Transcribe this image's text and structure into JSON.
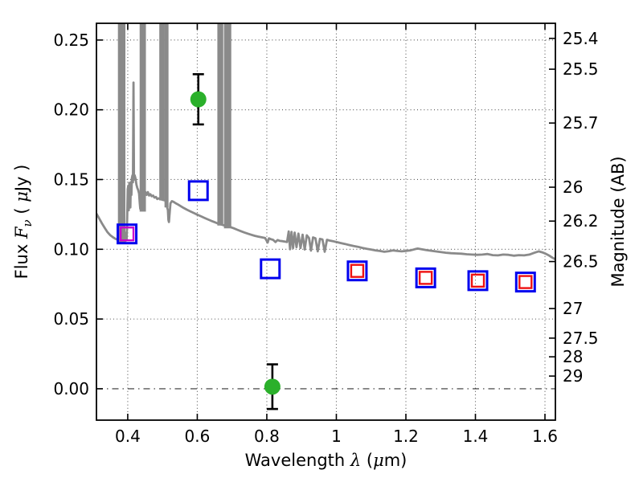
{
  "figure": {
    "background": "#ffffff"
  },
  "chart_data": {
    "type": "line+scatter",
    "title": "",
    "xlabel_parts": [
      {
        "t": "Wavelength  "
      },
      {
        "t": "λ",
        "italic": true,
        "serif": true
      },
      {
        "t": " ("
      },
      {
        "t": "μ",
        "italic": true,
        "serif": true
      },
      {
        "t": "m)"
      }
    ],
    "ylabel_left_parts": [
      {
        "t": "Flux  "
      },
      {
        "t": "F",
        "italic": true,
        "serif": true
      },
      {
        "t": "ν",
        "sub": true,
        "italic": true,
        "serif": true
      },
      {
        "t": "  ( "
      },
      {
        "t": "μ",
        "italic": true,
        "serif": true
      },
      {
        "t": "Jy )"
      }
    ],
    "ylabel_right": "Magnitude (AB)",
    "axes": {
      "xlim": [
        0.31,
        1.63
      ],
      "ylim": [
        -0.0225,
        0.262
      ],
      "grid_style": "dotted",
      "zero_line_style": "dash-dot",
      "x_ticks": [
        {
          "v": 0.4,
          "label": "0.4"
        },
        {
          "v": 0.6,
          "label": "0.6"
        },
        {
          "v": 0.8,
          "label": "0.8"
        },
        {
          "v": 1.0,
          "label": "1"
        },
        {
          "v": 1.2,
          "label": "1.2"
        },
        {
          "v": 1.4,
          "label": "1.4"
        },
        {
          "v": 1.6,
          "label": "1.6"
        }
      ],
      "y_ticks_left": [
        {
          "v": 0.0,
          "label": "0.00"
        },
        {
          "v": 0.05,
          "label": "0.05"
        },
        {
          "v": 0.1,
          "label": "0.10"
        },
        {
          "v": 0.15,
          "label": "0.15"
        },
        {
          "v": 0.2,
          "label": "0.20"
        },
        {
          "v": 0.25,
          "label": "0.25"
        }
      ],
      "y_ticks_right": [
        {
          "flux": 0.2512,
          "label": "25.4"
        },
        {
          "flux": 0.2291,
          "label": "25.5"
        },
        {
          "flux": 0.1905,
          "label": "25.7"
        },
        {
          "flux": 0.1445,
          "label": "26"
        },
        {
          "flux": 0.1202,
          "label": "26.2"
        },
        {
          "flux": 0.0912,
          "label": "26.5"
        },
        {
          "flux": 0.0575,
          "label": "27"
        },
        {
          "flux": 0.0363,
          "label": "27.5"
        },
        {
          "flux": 0.0229,
          "label": "28"
        },
        {
          "flux": 0.0091,
          "label": "29"
        }
      ]
    },
    "colors": {
      "spectrum": "#8a8a8a",
      "square_blue": "#0000ee",
      "inner_red": "#ee1111",
      "inner_magenta": "#cc00cc",
      "circle_green": "#2bb02b",
      "errorbar": "#000000",
      "grid": "#555555",
      "frame": "#000000"
    },
    "series": [
      {
        "name": "model-spectrum",
        "type": "line"
      },
      {
        "name": "photometry-squares",
        "type": "scatter",
        "marker": "open-square"
      },
      {
        "name": "line-flux-points",
        "type": "scatter",
        "marker": "filled-circle"
      }
    ],
    "squares": [
      {
        "x": 0.398,
        "y": 0.111,
        "inner": "magenta"
      },
      {
        "x": 0.603,
        "y": 0.142,
        "inner": null
      },
      {
        "x": 0.81,
        "y": 0.086,
        "inner": null
      },
      {
        "x": 1.06,
        "y": 0.0845,
        "inner": "red"
      },
      {
        "x": 1.257,
        "y": 0.0795,
        "inner": "red"
      },
      {
        "x": 1.407,
        "y": 0.0775,
        "inner": "red"
      },
      {
        "x": 1.544,
        "y": 0.0765,
        "inner": "red"
      }
    ],
    "circles": [
      {
        "x": 0.603,
        "y": 0.2075,
        "yerr": 0.018
      },
      {
        "x": 0.816,
        "y": 0.0015,
        "yerr": 0.016
      }
    ],
    "spectrum_bars": [
      {
        "x0": 0.3745,
        "x1": 0.3905,
        "base": 0.105
      },
      {
        "x0": 0.437,
        "x1": 0.4495,
        "base": 0.127
      },
      {
        "x0": 0.4935,
        "x1": 0.5035,
        "base": 0.135
      },
      {
        "x0": 0.5085,
        "x1": 0.5145,
        "base": 0.13
      },
      {
        "x0": 0.6605,
        "x1": 0.672,
        "base": 0.117
      },
      {
        "x0": 0.6795,
        "x1": 0.695,
        "base": 0.115
      }
    ],
    "spectrum_points": [
      [
        0.31,
        0.1255
      ],
      [
        0.318,
        0.122
      ],
      [
        0.326,
        0.1185
      ],
      [
        0.334,
        0.1152
      ],
      [
        0.342,
        0.1122
      ],
      [
        0.35,
        0.11
      ],
      [
        0.358,
        0.1085
      ],
      [
        0.366,
        0.1073
      ],
      [
        0.374,
        0.1066
      ],
      [
        0.382,
        0.106
      ],
      [
        0.39,
        0.1075
      ],
      [
        0.3925,
        0.1085
      ],
      [
        0.394,
        0.106
      ],
      [
        0.3955,
        0.112
      ],
      [
        0.397,
        0.1075
      ],
      [
        0.3985,
        0.124
      ],
      [
        0.4,
        0.143
      ],
      [
        0.4015,
        0.1455
      ],
      [
        0.403,
        0.128
      ],
      [
        0.4045,
        0.1475
      ],
      [
        0.406,
        0.1465
      ],
      [
        0.4075,
        0.13
      ],
      [
        0.409,
        0.148
      ],
      [
        0.4105,
        0.139
      ],
      [
        0.412,
        0.151
      ],
      [
        0.4135,
        0.153
      ],
      [
        0.415,
        0.148
      ],
      [
        0.4165,
        0.2195
      ],
      [
        0.418,
        0.15
      ],
      [
        0.42,
        0.153
      ],
      [
        0.4225,
        0.1505
      ],
      [
        0.425,
        0.1465
      ],
      [
        0.4275,
        0.144
      ],
      [
        0.43,
        0.1425
      ],
      [
        0.4325,
        0.14
      ],
      [
        0.4345,
        0.133
      ],
      [
        0.436,
        0.129
      ],
      [
        0.443,
        0.13
      ],
      [
        0.451,
        0.141
      ],
      [
        0.4545,
        0.139
      ],
      [
        0.458,
        0.141
      ],
      [
        0.4615,
        0.1385
      ],
      [
        0.465,
        0.1395
      ],
      [
        0.469,
        0.138
      ],
      [
        0.473,
        0.1385
      ],
      [
        0.477,
        0.137
      ],
      [
        0.481,
        0.1375
      ],
      [
        0.485,
        0.136
      ],
      [
        0.489,
        0.1365
      ],
      [
        0.493,
        0.136
      ],
      [
        0.5,
        0.1355
      ],
      [
        0.508,
        0.135
      ],
      [
        0.5155,
        0.128
      ],
      [
        0.517,
        0.121
      ],
      [
        0.5185,
        0.1195
      ],
      [
        0.52,
        0.124
      ],
      [
        0.523,
        0.133
      ],
      [
        0.527,
        0.1345
      ],
      [
        0.532,
        0.134
      ],
      [
        0.538,
        0.133
      ],
      [
        0.545,
        0.132
      ],
      [
        0.553,
        0.1308
      ],
      [
        0.561,
        0.1296
      ],
      [
        0.57,
        0.1284
      ],
      [
        0.58,
        0.1272
      ],
      [
        0.59,
        0.126
      ],
      [
        0.6,
        0.1248
      ],
      [
        0.61,
        0.1237
      ],
      [
        0.62,
        0.1226
      ],
      [
        0.63,
        0.1215
      ],
      [
        0.64,
        0.1204
      ],
      [
        0.65,
        0.1194
      ],
      [
        0.658,
        0.1186
      ],
      [
        0.666,
        0.118
      ],
      [
        0.676,
        0.1172
      ],
      [
        0.688,
        0.1165
      ],
      [
        0.697,
        0.1158
      ],
      [
        0.705,
        0.115
      ],
      [
        0.715,
        0.114
      ],
      [
        0.725,
        0.113
      ],
      [
        0.735,
        0.1121
      ],
      [
        0.745,
        0.1112
      ],
      [
        0.755,
        0.1104
      ],
      [
        0.765,
        0.1097
      ],
      [
        0.775,
        0.1091
      ],
      [
        0.785,
        0.1086
      ],
      [
        0.795,
        0.1081
      ],
      [
        0.8025,
        0.1048
      ],
      [
        0.806,
        0.1078
      ],
      [
        0.812,
        0.1072
      ],
      [
        0.818,
        0.1068
      ],
      [
        0.825,
        0.1052
      ],
      [
        0.831,
        0.1066
      ],
      [
        0.838,
        0.106
      ],
      [
        0.845,
        0.1058
      ],
      [
        0.852,
        0.1055
      ],
      [
        0.858,
        0.1052
      ],
      [
        0.863,
        0.1128
      ],
      [
        0.867,
        0.1
      ],
      [
        0.871,
        0.1125
      ],
      [
        0.8755,
        0.1008
      ],
      [
        0.88,
        0.112
      ],
      [
        0.8855,
        0.1015
      ],
      [
        0.891,
        0.1112
      ],
      [
        0.897,
        0.1008
      ],
      [
        0.903,
        0.1105
      ],
      [
        0.909,
        0.0998
      ],
      [
        0.915,
        0.11
      ],
      [
        0.9215,
        0.108
      ],
      [
        0.927,
        0.099
      ],
      [
        0.933,
        0.1085
      ],
      [
        0.94,
        0.1078
      ],
      [
        0.9465,
        0.0985
      ],
      [
        0.953,
        0.1075
      ],
      [
        0.96,
        0.107
      ],
      [
        0.9665,
        0.0982
      ],
      [
        0.973,
        0.1068
      ],
      [
        0.98,
        0.1063
      ],
      [
        0.99,
        0.1058
      ],
      [
        1.0,
        0.1052
      ],
      [
        1.012,
        0.1045
      ],
      [
        1.025,
        0.1038
      ],
      [
        1.038,
        0.103
      ],
      [
        1.05,
        0.1023
      ],
      [
        1.062,
        0.1018
      ],
      [
        1.075,
        0.101
      ],
      [
        1.088,
        0.1003
      ],
      [
        1.1,
        0.0998
      ],
      [
        1.113,
        0.0992
      ],
      [
        1.125,
        0.0988
      ],
      [
        1.138,
        0.0982
      ],
      [
        1.15,
        0.0986
      ],
      [
        1.163,
        0.0992
      ],
      [
        1.175,
        0.0988
      ],
      [
        1.188,
        0.0985
      ],
      [
        1.2,
        0.0988
      ],
      [
        1.213,
        0.0992
      ],
      [
        1.225,
        0.1
      ],
      [
        1.234,
        0.1005
      ],
      [
        1.245,
        0.1
      ],
      [
        1.258,
        0.0995
      ],
      [
        1.27,
        0.099
      ],
      [
        1.285,
        0.0985
      ],
      [
        1.3,
        0.098
      ],
      [
        1.315,
        0.0975
      ],
      [
        1.33,
        0.0972
      ],
      [
        1.345,
        0.097
      ],
      [
        1.36,
        0.0968
      ],
      [
        1.375,
        0.0964
      ],
      [
        1.39,
        0.0962
      ],
      [
        1.405,
        0.096
      ],
      [
        1.42,
        0.0962
      ],
      [
        1.435,
        0.0966
      ],
      [
        1.45,
        0.0958
      ],
      [
        1.465,
        0.0956
      ],
      [
        1.48,
        0.0962
      ],
      [
        1.495,
        0.096
      ],
      [
        1.51,
        0.0954
      ],
      [
        1.525,
        0.0958
      ],
      [
        1.54,
        0.0956
      ],
      [
        1.555,
        0.0962
      ],
      [
        1.57,
        0.0975
      ],
      [
        1.582,
        0.0985
      ],
      [
        1.592,
        0.0978
      ],
      [
        1.602,
        0.0968
      ],
      [
        1.612,
        0.0955
      ],
      [
        1.62,
        0.0942
      ],
      [
        1.63,
        0.0928
      ]
    ]
  }
}
